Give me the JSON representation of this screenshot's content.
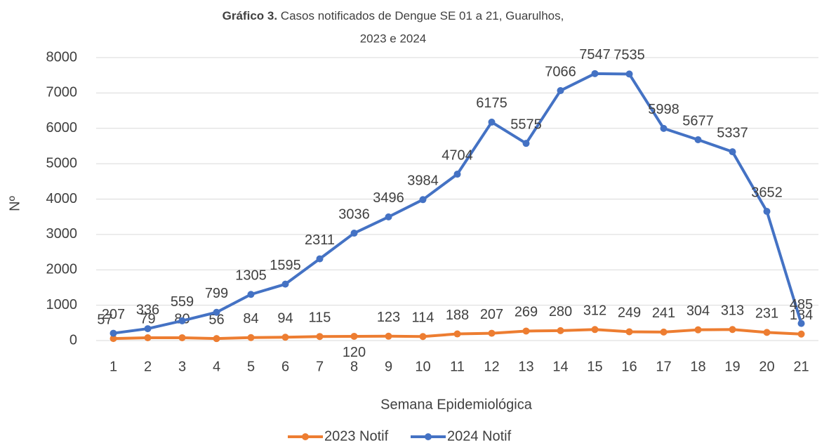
{
  "chart_data": {
    "type": "line",
    "title_bold": "Gráfico 3.",
    "title_line1": "Casos notificados de Dengue SE 01 a 21, Guarulhos,",
    "title_line2": "2023 e 2024",
    "x_label": "Semana Epidemiológica",
    "y_label": "Nº",
    "categories": [
      1,
      2,
      3,
      4,
      5,
      6,
      7,
      8,
      9,
      10,
      11,
      12,
      13,
      14,
      15,
      16,
      17,
      18,
      19,
      20,
      21
    ],
    "series": [
      {
        "name": "2023 Notif",
        "color": "#ed7d31",
        "values": [
          57,
          79,
          80,
          56,
          84,
          94,
          115,
          120,
          123,
          114,
          188,
          207,
          269,
          280,
          312,
          249,
          241,
          304,
          313,
          231,
          184
        ]
      },
      {
        "name": "2024 Notif",
        "color": "#4472c4",
        "values": [
          207,
          336,
          559,
          799,
          1305,
          1595,
          2311,
          3036,
          3496,
          3984,
          4704,
          6175,
          5575,
          7066,
          7547,
          7535,
          5998,
          5677,
          5337,
          3652,
          485
        ]
      }
    ],
    "ylim": [
      0,
      8000
    ],
    "yticks": [
      0,
      1000,
      2000,
      3000,
      4000,
      5000,
      6000,
      7000,
      8000
    ],
    "grid": true,
    "legend": "bottom"
  }
}
